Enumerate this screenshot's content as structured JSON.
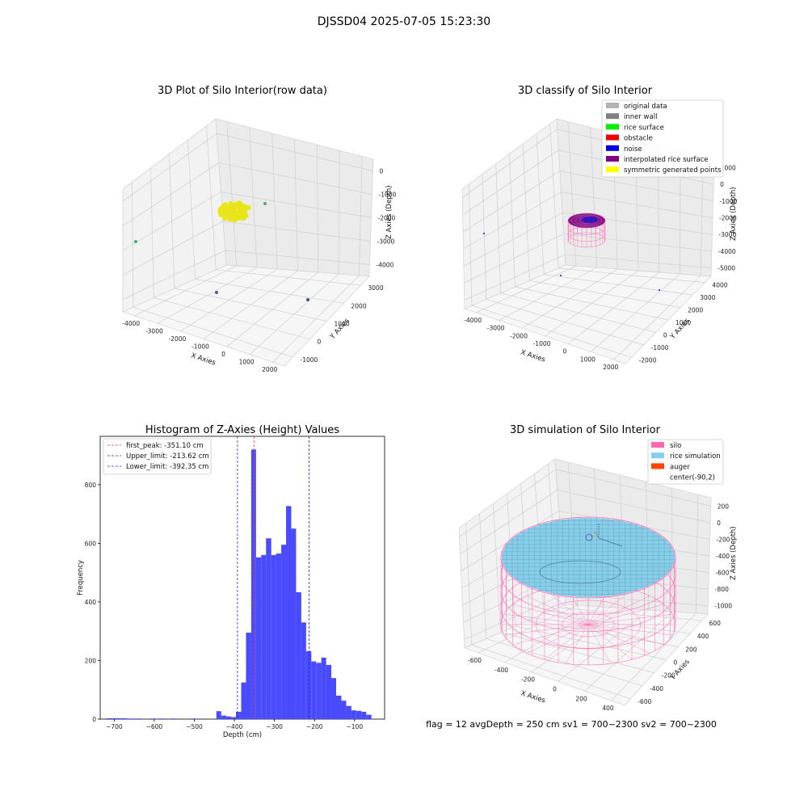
{
  "figure_title": "DJSSD04 2025-07-05 15:23:30",
  "colors": {
    "yellow_points": "#e8e61a",
    "hist_bar": "#4a4aff",
    "peak_line": "#ff3333",
    "limit_line": "#2222dd",
    "silo": "#ff69b4",
    "rice": "#87ceeb",
    "auger": "#ff4500",
    "interp": "#800080",
    "noise": "#1010dd",
    "green": "#3cb371"
  },
  "panel_raw": {
    "title": "3D Plot of Silo Interior(row data)",
    "xlabel": "X Axies",
    "ylabel": "Y Axies",
    "zlabel": "Z Axies (Depth)",
    "xticks": [
      "-4000",
      "-3000",
      "-2000",
      "-1000",
      "0",
      "1000",
      "2000"
    ],
    "yticks": [
      "-1000",
      "0",
      "1000",
      "2000",
      "3000"
    ],
    "zticks": [
      "0",
      "-1000",
      "-2000",
      "-3000",
      "-4000"
    ]
  },
  "panel_classify": {
    "title": "3D classify of Silo Interior",
    "xlabel": "X Axies",
    "ylabel": "Y Axies",
    "zlabel": "Z Axies (Depth)",
    "xticks": [
      "-4000",
      "-3000",
      "-2000",
      "-1000",
      "0",
      "1000",
      "2000"
    ],
    "yticks": [
      "-2000",
      "-1000",
      "0",
      "1000",
      "2000",
      "3000",
      "4000"
    ],
    "zticks": [
      "1000",
      "0",
      "-1000",
      "-2000",
      "-3000",
      "-4000",
      "-5000"
    ],
    "legend": [
      {
        "label": "original data",
        "color": "#b3b3b3"
      },
      {
        "label": "inner wall",
        "color": "#808080"
      },
      {
        "label": "rice surface",
        "color": "#00ee00"
      },
      {
        "label": "obstacle",
        "color": "#ee0000"
      },
      {
        "label": "noise",
        "color": "#0000dd"
      },
      {
        "label": "interpolated rice surface",
        "color": "#800080"
      },
      {
        "label": "symmetric generated points",
        "color": "#ffff00"
      }
    ]
  },
  "panel_simulation": {
    "title": "3D simulation of Silo Interior",
    "xlabel": "X Axies",
    "ylabel": "Y Axies",
    "zlabel": "Z Axies (Depth)",
    "xticks": [
      "-600",
      "-400",
      "-200",
      "0",
      "200",
      "400"
    ],
    "yticks": [
      "-600",
      "-400",
      "-200",
      "0",
      "200",
      "400",
      "600"
    ],
    "zticks": [
      "200",
      "0",
      "-200",
      "-400",
      "-600",
      "-800",
      "-1000"
    ],
    "legend": [
      {
        "label": "silo",
        "color": "#ff69b4"
      },
      {
        "label": "rice simulation",
        "color": "#87ceeb"
      },
      {
        "label": "auger",
        "color": "#ff4500"
      },
      {
        "label": "center(-90,2)",
        "color": ""
      }
    ],
    "footer": "flag = 12   avgDepth = 250 cm  sv1 = 700~2300  sv2 = 700~2300"
  },
  "chart_data": {
    "type": "bar",
    "title": "Histogram of Z-Axies (Height) Values",
    "xlabel": "Depth (cm)",
    "ylabel": "Frequency",
    "xlim": [
      -735,
      -25
    ],
    "ylim": [
      0,
      965
    ],
    "xticks": [
      -700,
      -600,
      -500,
      -400,
      -300,
      -200,
      -100
    ],
    "yticks": [
      0,
      200,
      400,
      600,
      800
    ],
    "bins": [
      {
        "x0": -720,
        "x1": -670,
        "count": 3
      },
      {
        "x0": -670,
        "x1": -630,
        "count": 2
      },
      {
        "x0": -610,
        "x1": -595,
        "count": 2
      },
      {
        "x0": -590,
        "x1": -575,
        "count": 2
      },
      {
        "x0": -560,
        "x1": -545,
        "count": 2
      },
      {
        "x0": -510,
        "x1": -495,
        "count": 2
      },
      {
        "x0": -445,
        "x1": -433,
        "count": 27
      },
      {
        "x0": -433,
        "x1": -420,
        "count": 12
      },
      {
        "x0": -420,
        "x1": -408,
        "count": 9
      },
      {
        "x0": -408,
        "x1": -396,
        "count": 7
      },
      {
        "x0": -396,
        "x1": -383,
        "count": 25
      },
      {
        "x0": -383,
        "x1": -371,
        "count": 125
      },
      {
        "x0": -371,
        "x1": -358,
        "count": 295
      },
      {
        "x0": -358,
        "x1": -346,
        "count": 920
      },
      {
        "x0": -346,
        "x1": -333,
        "count": 552
      },
      {
        "x0": -333,
        "x1": -321,
        "count": 560
      },
      {
        "x0": -321,
        "x1": -308,
        "count": 617
      },
      {
        "x0": -308,
        "x1": -296,
        "count": 560
      },
      {
        "x0": -296,
        "x1": -283,
        "count": 565
      },
      {
        "x0": -283,
        "x1": -271,
        "count": 595
      },
      {
        "x0": -271,
        "x1": -258,
        "count": 727
      },
      {
        "x0": -258,
        "x1": -246,
        "count": 650
      },
      {
        "x0": -246,
        "x1": -233,
        "count": 433
      },
      {
        "x0": -233,
        "x1": -221,
        "count": 330
      },
      {
        "x0": -221,
        "x1": -208,
        "count": 232
      },
      {
        "x0": -208,
        "x1": -196,
        "count": 197
      },
      {
        "x0": -196,
        "x1": -183,
        "count": 192
      },
      {
        "x0": -183,
        "x1": -171,
        "count": 210
      },
      {
        "x0": -171,
        "x1": -158,
        "count": 185
      },
      {
        "x0": -158,
        "x1": -146,
        "count": 140
      },
      {
        "x0": -146,
        "x1": -133,
        "count": 80
      },
      {
        "x0": -133,
        "x1": -121,
        "count": 63
      },
      {
        "x0": -121,
        "x1": -108,
        "count": 45
      },
      {
        "x0": -108,
        "x1": -96,
        "count": 30
      },
      {
        "x0": -96,
        "x1": -83,
        "count": 28
      },
      {
        "x0": -83,
        "x1": -71,
        "count": 25
      },
      {
        "x0": -71,
        "x1": -58,
        "count": 15
      }
    ],
    "lines": [
      {
        "label": "first_peak: -351.10 cm",
        "x": -351.1,
        "color": "#ff3333"
      },
      {
        "label": "Upper_limit: -213.62 cm",
        "x": -213.62,
        "color": "#2222dd"
      },
      {
        "label": "Lower_limit: -392.35 cm",
        "x": -392.35,
        "color": "#2222dd"
      }
    ],
    "legend_position": "top-left"
  }
}
